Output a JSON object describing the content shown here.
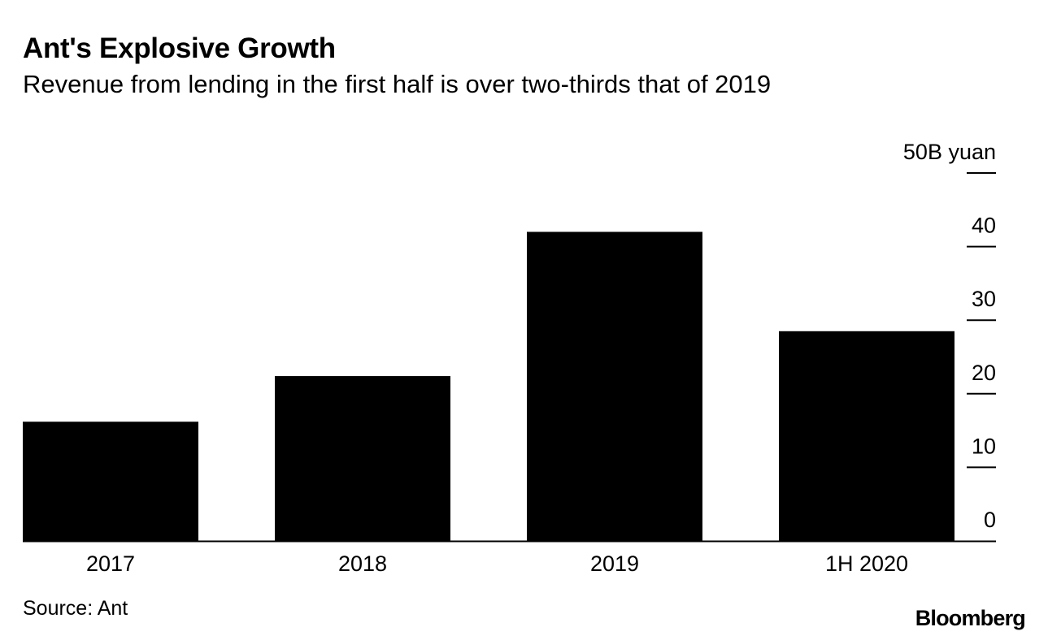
{
  "chart_data": {
    "type": "bar",
    "title": "Ant's Explosive Growth",
    "subtitle": "Revenue from lending in the first half is over two-thirds that of 2019",
    "categories": [
      "2017",
      "2018",
      "2019",
      "1H 2020"
    ],
    "series": [
      {
        "name": "Revenue from lending",
        "values": [
          16.2,
          22.4,
          42.0,
          28.5
        ]
      }
    ],
    "xlabel": "",
    "ylabel": "",
    "unit_label": "50B yuan",
    "yticks": [
      0,
      10,
      20,
      30,
      40,
      50
    ],
    "ylim": [
      0,
      50
    ],
    "axis_position": "right",
    "grid": false,
    "bar_color": "#000000"
  },
  "footer": {
    "source": "Source: Ant",
    "brand": "Bloomberg"
  }
}
